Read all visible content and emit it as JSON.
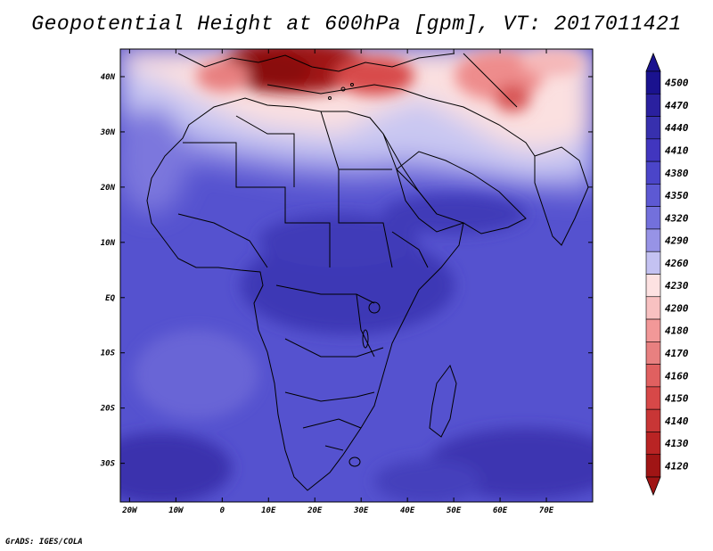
{
  "title": "Geopotential Height at 600hPa [gpm], VT: 2017011421",
  "credit": "GrADS: IGES/COLA",
  "map": {
    "lon_ticks": [
      "20W",
      "10W",
      "0",
      "10E",
      "20E",
      "30E",
      "40E",
      "50E",
      "60E",
      "70E"
    ],
    "lat_ticks": [
      "40N",
      "30N",
      "20N",
      "10N",
      "EQ",
      "10S",
      "20S",
      "30S"
    ],
    "lon_range": [
      -22,
      80
    ],
    "lat_range": [
      -37,
      45
    ]
  },
  "colorbar": {
    "levels": [
      "4500",
      "4470",
      "4440",
      "4410",
      "4380",
      "4350",
      "4320",
      "4290",
      "4260",
      "4230",
      "4200",
      "4180",
      "4170",
      "4160",
      "4150",
      "4140",
      "4130",
      "4120"
    ],
    "colors": [
      "#1a128f",
      "#2a209f",
      "#3730ae",
      "#4136bf",
      "#4b45c9",
      "#5d59d3",
      "#7370dc",
      "#9793e6",
      "#c4c2f2",
      "#fde2e2",
      "#f8c1c1",
      "#f29898",
      "#e88080",
      "#e06060",
      "#d74848",
      "#c83636",
      "#b92424",
      "#a01515"
    ]
  }
}
